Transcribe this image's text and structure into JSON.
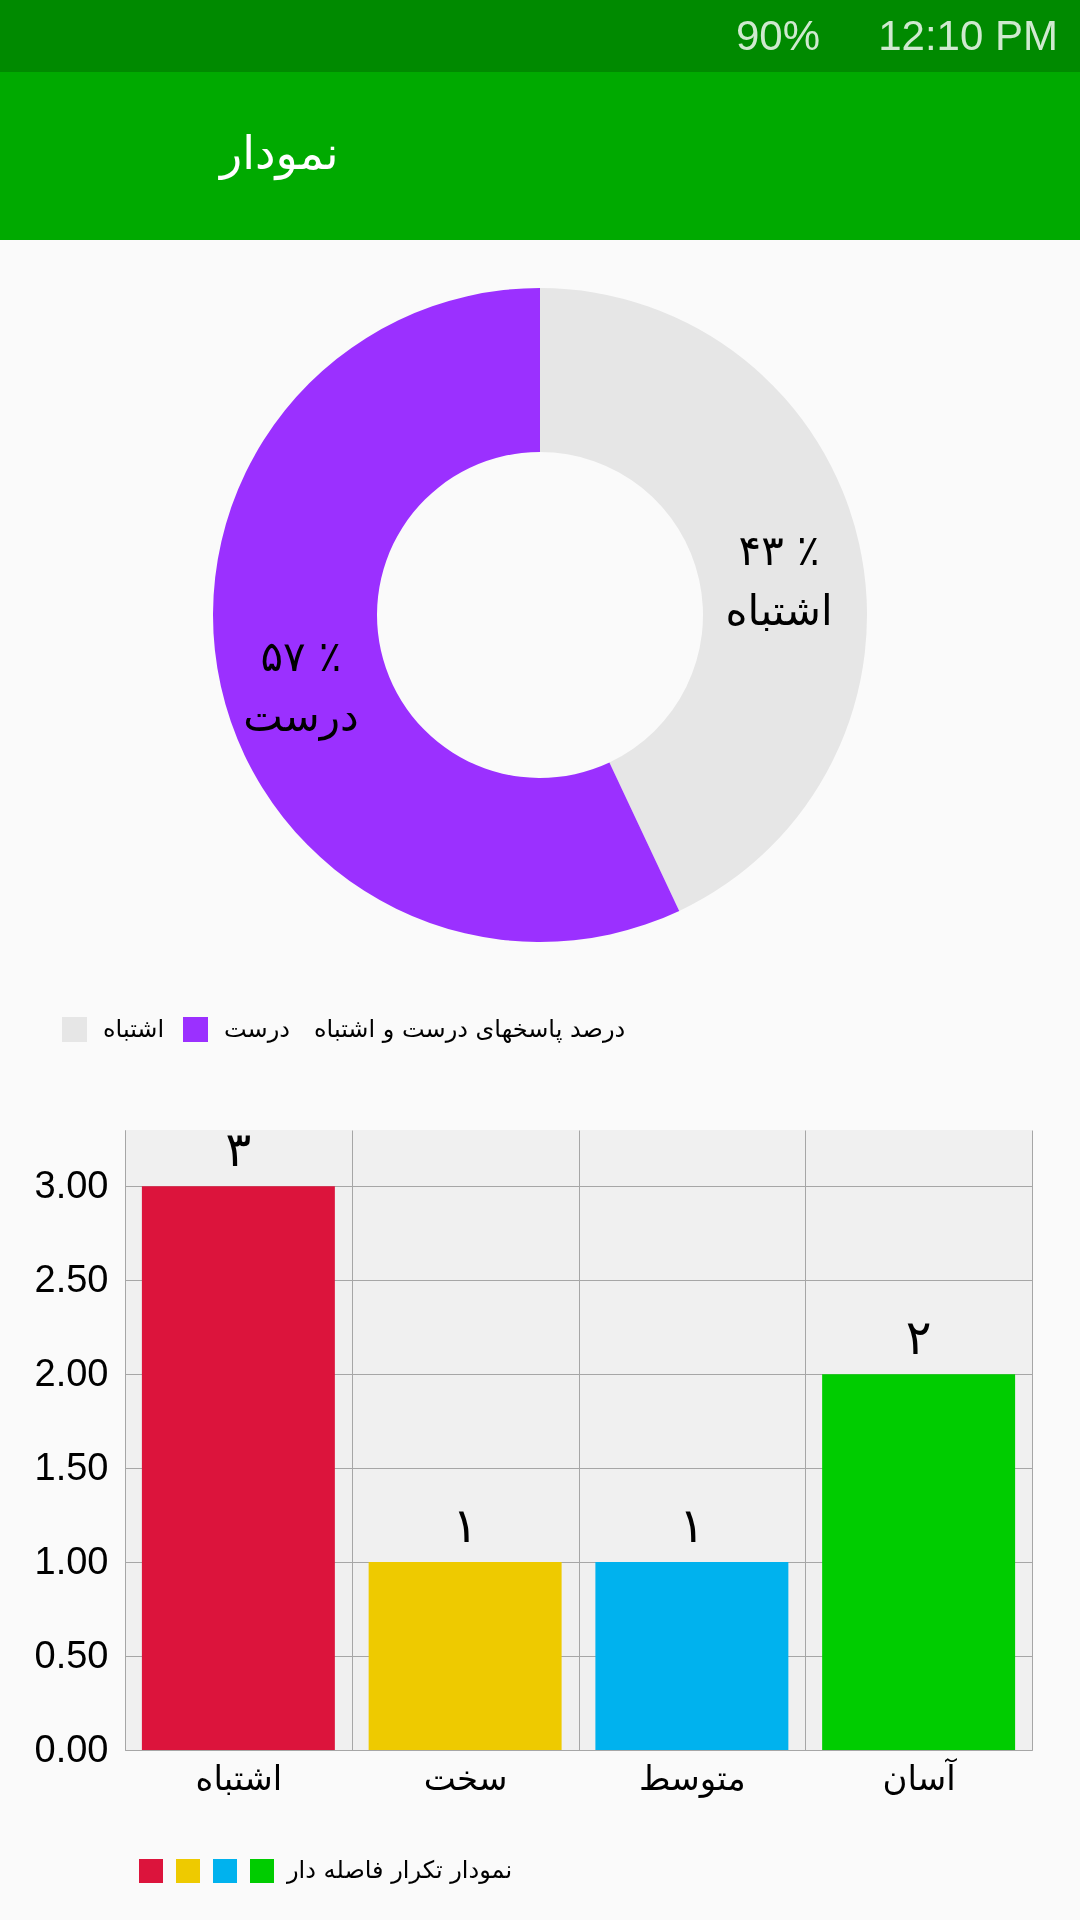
{
  "chart_data": [
    {
      "type": "other",
      "title": "نمودار",
      "annotations": [
        "90%",
        "12:10 PM"
      ]
    },
    {
      "type": "donut",
      "categories": [
        "اشتباه",
        "درست"
      ],
      "values": [
        43,
        57
      ],
      "colors": [
        "#e6e6e6",
        "#9b30ff"
      ],
      "value_labels": [
        "۴۳ ٪",
        "۵۷ ٪"
      ],
      "legend": "bottom left",
      "legend_title": "درصد پاسخهای درست و اشتباه"
    },
    {
      "type": "bar",
      "categories": [
        "اشتباه",
        "سخت",
        "متوسط",
        "آسان"
      ],
      "series": [
        {
          "name": "نمودار تکرار فاصله دار",
          "values": [
            3,
            1,
            1,
            2
          ],
          "value_labels": [
            "۳",
            "۱",
            "۱",
            "۲"
          ]
        }
      ],
      "colors": [
        "#dc143c",
        "#eeca00",
        "#00b2ee",
        "#00cc00"
      ],
      "ylim": [
        0,
        3.3
      ],
      "yticks": [
        {
          "value": 0,
          "label": "0.00"
        },
        {
          "value": 0.5,
          "label": "0.50"
        },
        {
          "value": 1,
          "label": "1.00"
        },
        {
          "value": 1.5,
          "label": "1.50"
        },
        {
          "value": 2,
          "label": "2.00"
        },
        {
          "value": 2.5,
          "label": "2.50"
        },
        {
          "value": 3,
          "label": "3.00"
        }
      ],
      "grid": true,
      "legend": "bottom left"
    }
  ]
}
